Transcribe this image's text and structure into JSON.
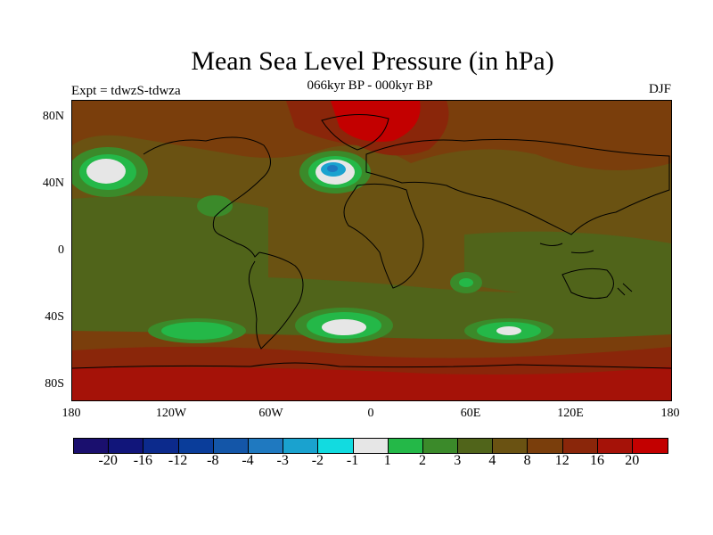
{
  "title": "Mean Sea Level Pressure (in hPa)",
  "subtitle_left": "Expt = tdwzS-tdwza",
  "subtitle_center": "066kyr BP - 000kyr BP",
  "subtitle_right": "DJF",
  "lat_labels": [
    "80N",
    "40N",
    "0",
    "40S",
    "80S"
  ],
  "lon_labels": [
    "180",
    "120W",
    "60W",
    "0",
    "60E",
    "120E",
    "180"
  ],
  "colorbar": {
    "colors": [
      "#1a0f6e",
      "#11157a",
      "#0c2a8c",
      "#0a3d9a",
      "#1456a8",
      "#1f79c0",
      "#1aa2cf",
      "#12dbe0",
      "#e6e6e6",
      "#24b848",
      "#3b8a2a",
      "#50641a",
      "#6a5212",
      "#7a3e0c",
      "#8a260a",
      "#a51208",
      "#c30000"
    ],
    "labels": [
      "-20",
      "-16",
      "-12",
      "-8",
      "-4",
      "-3",
      "-2",
      "-1",
      "1",
      "2",
      "3",
      "4",
      "8",
      "12",
      "16",
      "20"
    ]
  },
  "colors": {
    "background": "#6a5212",
    "brown_dark": "#7a3e0c",
    "red_dark": "#8a260a",
    "red": "#c30000",
    "olive": "#50641a",
    "green": "#3b8a2a",
    "green_bright": "#24b848",
    "white": "#e6e6e6",
    "cyan": "#12dbe0",
    "blue": "#1aa2cf"
  }
}
